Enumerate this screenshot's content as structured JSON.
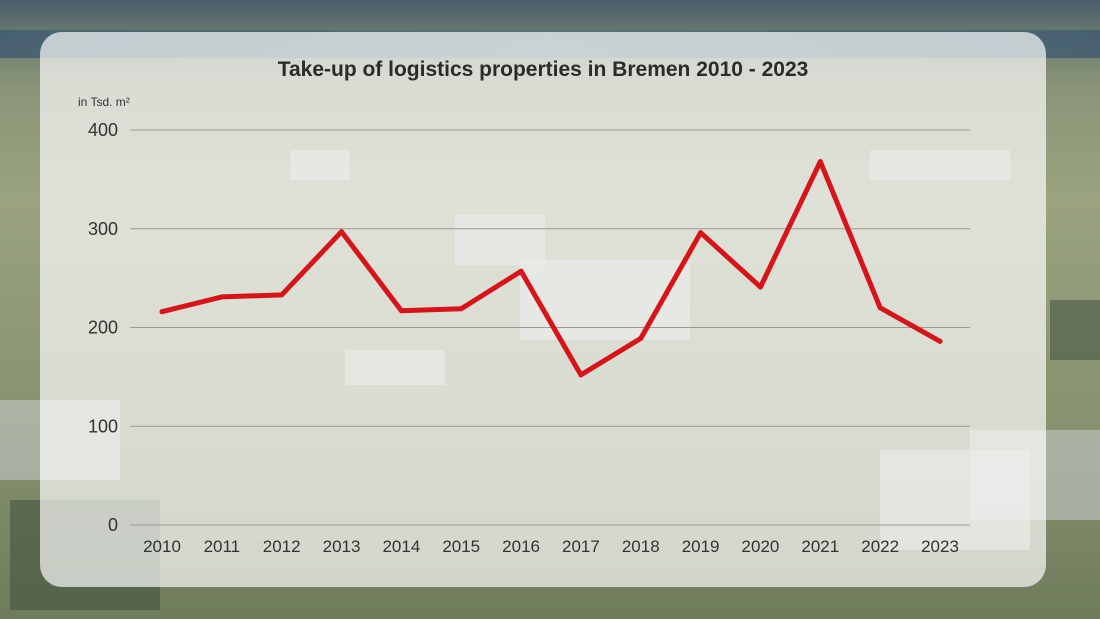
{
  "chart_data": {
    "type": "line",
    "title": "Take-up of logistics properties in Bremen 2010 - 2023",
    "ylabel": "in Tsd. m²",
    "xlabel": "",
    "x": [
      "2010",
      "2011",
      "2012",
      "2013",
      "2014",
      "2015",
      "2016",
      "2017",
      "2018",
      "2019",
      "2020",
      "2021",
      "2022",
      "2023"
    ],
    "series": [
      {
        "name": "",
        "values": [
          216,
          231,
          233,
          297,
          217,
          219,
          257,
          152,
          189,
          296,
          241,
          368,
          220,
          186
        ]
      }
    ],
    "ylim": [
      0,
      400
    ],
    "yticks": [
      "0",
      "100",
      "200",
      "300",
      "400"
    ],
    "grid": true,
    "legend": "none",
    "line_color": "#d7141a",
    "grid_color": "#9a9a9a"
  }
}
